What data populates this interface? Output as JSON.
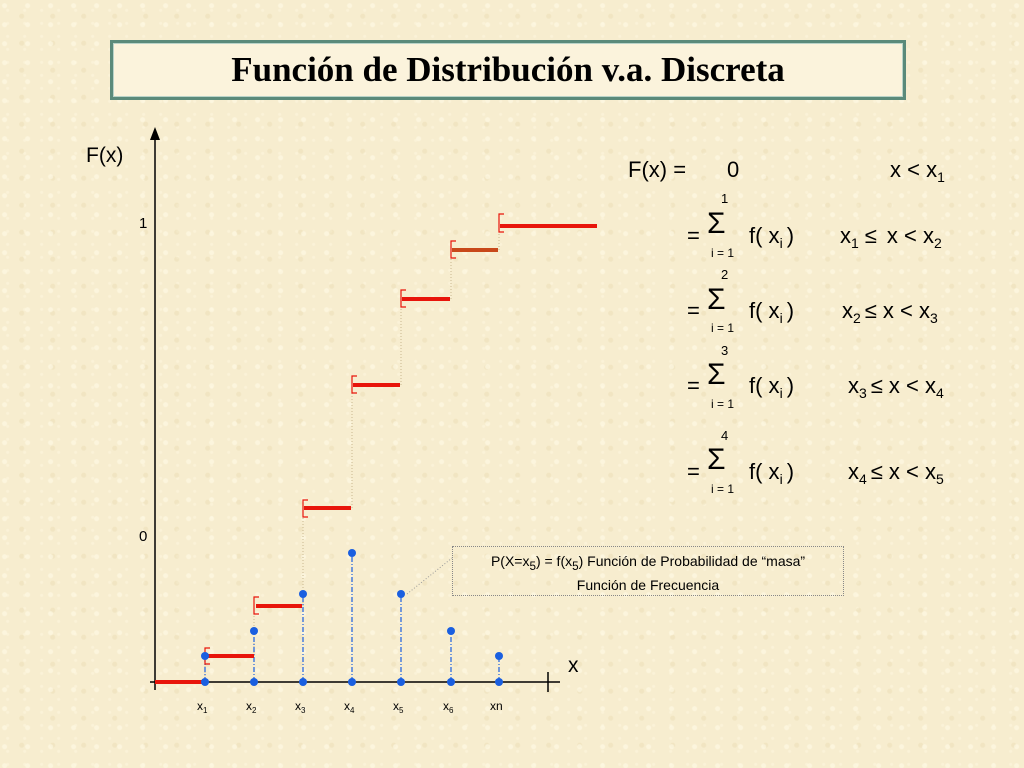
{
  "title": "Función de Distribución v.a. Discreta",
  "axis": {
    "y_label": "F(x)",
    "x_label": "x",
    "tick_one": "1",
    "tick_zero": "0"
  },
  "x_ticks": [
    {
      "base": "x",
      "sub": "1"
    },
    {
      "base": "x",
      "sub": "2"
    },
    {
      "base": "x",
      "sub": "3"
    },
    {
      "base": "x",
      "sub": "4"
    },
    {
      "base": "x",
      "sub": "5"
    },
    {
      "base": "x",
      "sub": "6"
    },
    {
      "base": "xn",
      "sub": ""
    }
  ],
  "formula": {
    "lead": "F(x) =",
    "first_value": "0",
    "first_cond": {
      "a": "x < x",
      "a_sub": "1"
    },
    "eq": "=",
    "sigma": "Σ",
    "lower": "i = 1",
    "term": "f( x",
    "term_sub": "i",
    "term_close": ")",
    "rows": [
      {
        "upper": "1",
        "c1": "x",
        "c1_sub": "1",
        "op1": "≤",
        "c2": "x < x",
        "c2_sub": "2"
      },
      {
        "upper": "2",
        "c1": "x",
        "c1_sub": "2",
        "op1": "≤",
        "c2": "x < x",
        "c2_sub": "3"
      },
      {
        "upper": "3",
        "c1": "x",
        "c1_sub": "3",
        "op1": "≤",
        "c2": "x < x",
        "c2_sub": "4"
      },
      {
        "upper": "4",
        "c1": "x",
        "c1_sub": "4",
        "op1": "≤",
        "c2": "x < x",
        "c2_sub": "5"
      }
    ]
  },
  "note": {
    "line1_a": "P(X=x",
    "line1_sub1": "5",
    "line1_b": ") = f(x",
    "line1_sub2": "5",
    "line1_c": ")  Función de Probabilidad de “masa”",
    "line2": "Función de Frecuencia"
  },
  "colors": {
    "step": "#e8150b",
    "step_highlight": "#c8481a",
    "point": "#1a5fe0",
    "axis": "#000000",
    "bracket": "#e8150b"
  }
}
